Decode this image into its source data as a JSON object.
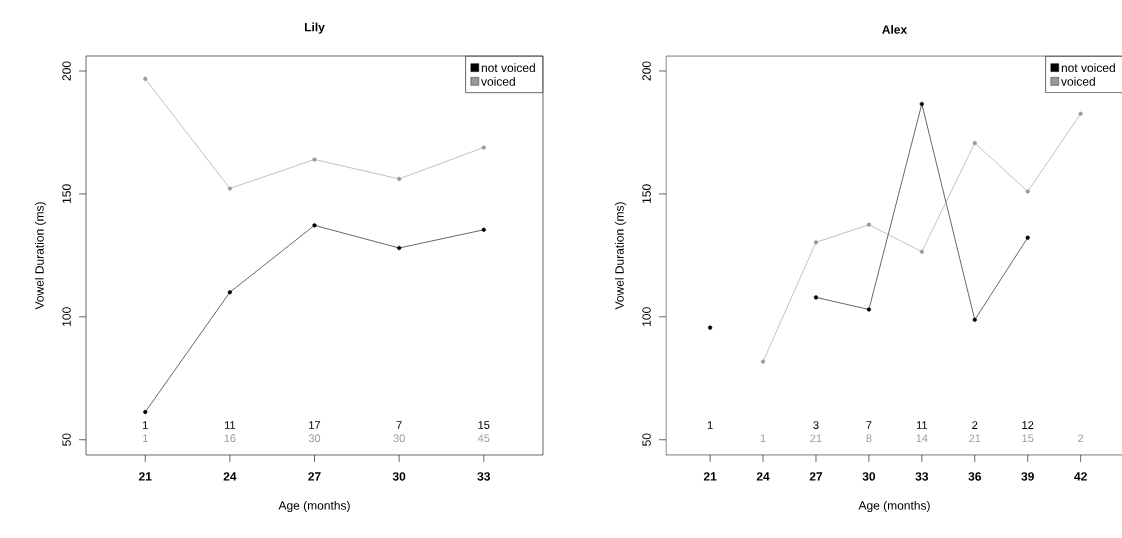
{
  "chart_data": [
    {
      "type": "line",
      "title": "Lily",
      "xlabel": "Age (months)",
      "ylabel": "Vowel Duration (ms)",
      "x": [
        21,
        24,
        27,
        30,
        33
      ],
      "series": [
        {
          "name": "not voiced",
          "color": "#000000",
          "values": [
            61.3,
            110.0,
            137.2,
            128.0,
            135.4
          ]
        },
        {
          "name": "voiced",
          "color": "#999999",
          "values": [
            196.8,
            152.2,
            164.0,
            156.1,
            168.9
          ]
        }
      ],
      "xlim": [
        18.9,
        35.1
      ],
      "ylim": [
        43.8,
        206.1
      ],
      "xticks": [
        21,
        24,
        27,
        30,
        33
      ],
      "yticks": [
        50,
        100,
        150,
        200
      ],
      "legend": "top right",
      "marker": "circle",
      "grid": false,
      "annotations": [
        "1",
        "11",
        "17",
        "7",
        "15",
        "1",
        "16",
        "30",
        "30",
        "45"
      ]
    },
    {
      "type": "line",
      "title": "Alex",
      "xlabel": "Age (months)",
      "ylabel": "Vowel Duration (ms)",
      "x": [
        21,
        24,
        27,
        30,
        33,
        36,
        39,
        42
      ],
      "series": [
        {
          "name": "not voiced",
          "color": "#000000",
          "values": [
            95.6,
            null,
            107.9,
            103.0,
            186.6,
            98.8,
            132.2,
            null
          ]
        },
        {
          "name": "voiced",
          "color": "#999999",
          "values": [
            null,
            81.8,
            130.3,
            137.5,
            126.5,
            170.7,
            151.0,
            182.6
          ]
        }
      ],
      "xlim": [
        18.5,
        44.4
      ],
      "ylim": [
        43.8,
        206.1
      ],
      "xticks": [
        21,
        24,
        27,
        30,
        33,
        36,
        39,
        42
      ],
      "yticks": [
        50,
        100,
        150,
        200
      ],
      "legend": "top right",
      "marker": "circle",
      "grid": false,
      "annotations": [
        "1",
        "3",
        "7",
        "11",
        "2",
        "12",
        "1",
        "21",
        "8",
        "14",
        "21",
        "15",
        "2"
      ]
    }
  ]
}
